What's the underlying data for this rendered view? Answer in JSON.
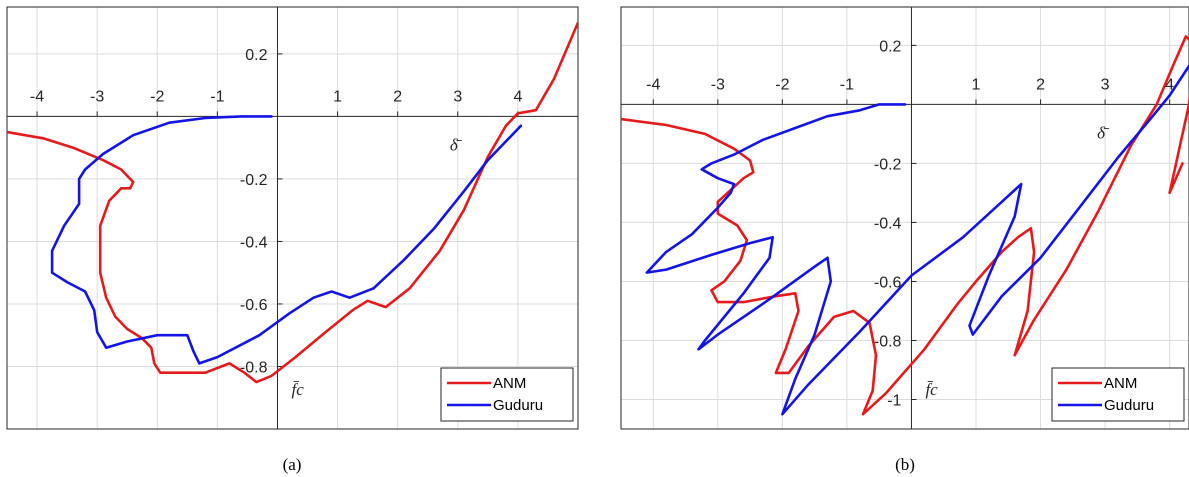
{
  "chart_data": [
    {
      "type": "line",
      "caption": "(a)",
      "xlabel": "δ̄",
      "ylabel": "f̄c",
      "xlim": [
        -4.5,
        5.0
      ],
      "ylim": [
        -1.0,
        0.35
      ],
      "xticks": [
        -4,
        -3,
        -2,
        -1,
        1,
        2,
        3,
        4
      ],
      "yticks": [
        0.2,
        -0.2,
        -0.4,
        -0.6,
        -0.8
      ],
      "grid": true,
      "legend_position": "bottom-right",
      "colors": {
        "ANM": "#e41a1c",
        "Guduru": "#1414e6"
      },
      "series": [
        {
          "name": "ANM",
          "points": [
            [
              -4.5,
              -0.05
            ],
            [
              -3.9,
              -0.07
            ],
            [
              -3.4,
              -0.1
            ],
            [
              -2.9,
              -0.14
            ],
            [
              -2.6,
              -0.17
            ],
            [
              -2.45,
              -0.2
            ],
            [
              -2.4,
              -0.21
            ],
            [
              -2.45,
              -0.23
            ],
            [
              -2.6,
              -0.23
            ],
            [
              -2.8,
              -0.27
            ],
            [
              -2.95,
              -0.35
            ],
            [
              -2.95,
              -0.5
            ],
            [
              -2.85,
              -0.58
            ],
            [
              -2.7,
              -0.64
            ],
            [
              -2.5,
              -0.68
            ],
            [
              -2.25,
              -0.71
            ],
            [
              -2.1,
              -0.74
            ],
            [
              -2.05,
              -0.79
            ],
            [
              -1.95,
              -0.82
            ],
            [
              -1.6,
              -0.82
            ],
            [
              -1.2,
              -0.82
            ],
            [
              -0.8,
              -0.79
            ],
            [
              -0.55,
              -0.82
            ],
            [
              -0.35,
              -0.85
            ],
            [
              -0.1,
              -0.83
            ],
            [
              0.3,
              -0.77
            ],
            [
              0.8,
              -0.69
            ],
            [
              1.25,
              -0.62
            ],
            [
              1.5,
              -0.59
            ],
            [
              1.8,
              -0.61
            ],
            [
              2.2,
              -0.55
            ],
            [
              2.7,
              -0.43
            ],
            [
              3.1,
              -0.3
            ],
            [
              3.5,
              -0.13
            ],
            [
              3.8,
              -0.03
            ],
            [
              4.0,
              0.01
            ],
            [
              4.3,
              0.02
            ],
            [
              4.6,
              0.12
            ],
            [
              5.0,
              0.3
            ]
          ]
        },
        {
          "name": "Guduru",
          "points": [
            [
              -0.1,
              0.0
            ],
            [
              -0.6,
              0.0
            ],
            [
              -1.2,
              -0.005
            ],
            [
              -1.8,
              -0.02
            ],
            [
              -2.4,
              -0.06
            ],
            [
              -2.9,
              -0.12
            ],
            [
              -3.2,
              -0.17
            ],
            [
              -3.3,
              -0.2
            ],
            [
              -3.3,
              -0.28
            ],
            [
              -3.55,
              -0.35
            ],
            [
              -3.75,
              -0.43
            ],
            [
              -3.75,
              -0.5
            ],
            [
              -3.5,
              -0.53
            ],
            [
              -3.2,
              -0.56
            ],
            [
              -3.05,
              -0.62
            ],
            [
              -3.0,
              -0.69
            ],
            [
              -2.85,
              -0.74
            ],
            [
              -2.5,
              -0.72
            ],
            [
              -2.0,
              -0.7
            ],
            [
              -1.5,
              -0.7
            ],
            [
              -1.4,
              -0.75
            ],
            [
              -1.3,
              -0.79
            ],
            [
              -1.0,
              -0.77
            ],
            [
              -0.3,
              -0.7
            ],
            [
              0.2,
              -0.63
            ],
            [
              0.6,
              -0.58
            ],
            [
              0.9,
              -0.56
            ],
            [
              1.2,
              -0.58
            ],
            [
              1.6,
              -0.55
            ],
            [
              2.1,
              -0.46
            ],
            [
              2.6,
              -0.36
            ],
            [
              3.1,
              -0.24
            ],
            [
              3.5,
              -0.14
            ],
            [
              3.8,
              -0.08
            ],
            [
              4.05,
              -0.03
            ]
          ]
        }
      ]
    },
    {
      "type": "line",
      "caption": "(b)",
      "xlabel": "δ̄",
      "ylabel": "f̄c",
      "xlim": [
        -4.5,
        4.3
      ],
      "ylim": [
        -1.1,
        0.33
      ],
      "xticks": [
        -4,
        -3,
        -2,
        -1,
        1,
        2,
        3,
        4
      ],
      "yticks": [
        0.2,
        -0.2,
        -0.4,
        -0.6,
        -0.8,
        -1
      ],
      "grid": true,
      "legend_position": "bottom-right",
      "colors": {
        "ANM": "#e41a1c",
        "Guduru": "#1414e6"
      },
      "series": [
        {
          "name": "ANM",
          "points": [
            [
              -4.5,
              -0.05
            ],
            [
              -3.8,
              -0.07
            ],
            [
              -3.2,
              -0.1
            ],
            [
              -2.75,
              -0.15
            ],
            [
              -2.5,
              -0.19
            ],
            [
              -2.45,
              -0.23
            ],
            [
              -2.6,
              -0.25
            ],
            [
              -2.85,
              -0.3
            ],
            [
              -3.0,
              -0.33
            ],
            [
              -3.0,
              -0.37
            ],
            [
              -2.7,
              -0.41
            ],
            [
              -2.55,
              -0.46
            ],
            [
              -2.65,
              -0.53
            ],
            [
              -2.9,
              -0.6
            ],
            [
              -3.1,
              -0.63
            ],
            [
              -3.0,
              -0.67
            ],
            [
              -2.6,
              -0.67
            ],
            [
              -2.1,
              -0.65
            ],
            [
              -1.8,
              -0.64
            ],
            [
              -1.75,
              -0.7
            ],
            [
              -1.95,
              -0.83
            ],
            [
              -2.1,
              -0.91
            ],
            [
              -1.9,
              -0.91
            ],
            [
              -1.6,
              -0.82
            ],
            [
              -1.2,
              -0.72
            ],
            [
              -0.9,
              -0.7
            ],
            [
              -0.65,
              -0.74
            ],
            [
              -0.55,
              -0.85
            ],
            [
              -0.6,
              -0.97
            ],
            [
              -0.75,
              -1.05
            ],
            [
              -0.4,
              -0.98
            ],
            [
              0.2,
              -0.83
            ],
            [
              0.7,
              -0.68
            ],
            [
              1.0,
              -0.6
            ],
            [
              1.4,
              -0.5
            ],
            [
              1.65,
              -0.45
            ],
            [
              1.85,
              -0.42
            ],
            [
              1.9,
              -0.5
            ],
            [
              1.8,
              -0.7
            ],
            [
              1.6,
              -0.85
            ],
            [
              1.9,
              -0.73
            ],
            [
              2.4,
              -0.56
            ],
            [
              2.9,
              -0.36
            ],
            [
              3.4,
              -0.14
            ],
            [
              3.8,
              0.0
            ],
            [
              4.05,
              0.13
            ],
            [
              4.25,
              0.23
            ],
            [
              4.4,
              0.2
            ],
            [
              4.3,
              0.0
            ],
            [
              4.1,
              -0.2
            ],
            [
              4.0,
              -0.3
            ],
            [
              4.2,
              -0.2
            ]
          ]
        },
        {
          "name": "Guduru",
          "points": [
            [
              -0.1,
              0.0
            ],
            [
              -0.5,
              0.0
            ],
            [
              -0.8,
              -0.02
            ],
            [
              -1.3,
              -0.04
            ],
            [
              -1.8,
              -0.08
            ],
            [
              -2.3,
              -0.12
            ],
            [
              -2.75,
              -0.17
            ],
            [
              -3.1,
              -0.2
            ],
            [
              -3.25,
              -0.22
            ],
            [
              -3.0,
              -0.25
            ],
            [
              -2.75,
              -0.27
            ],
            [
              -2.8,
              -0.3
            ],
            [
              -3.0,
              -0.35
            ],
            [
              -3.4,
              -0.44
            ],
            [
              -3.8,
              -0.5
            ],
            [
              -4.1,
              -0.57
            ],
            [
              -3.8,
              -0.56
            ],
            [
              -3.1,
              -0.51
            ],
            [
              -2.5,
              -0.47
            ],
            [
              -2.15,
              -0.45
            ],
            [
              -2.2,
              -0.52
            ],
            [
              -2.6,
              -0.64
            ],
            [
              -3.2,
              -0.8
            ],
            [
              -3.3,
              -0.83
            ],
            [
              -3.0,
              -0.78
            ],
            [
              -2.2,
              -0.66
            ],
            [
              -1.5,
              -0.55
            ],
            [
              -1.3,
              -0.52
            ],
            [
              -1.25,
              -0.6
            ],
            [
              -1.5,
              -0.78
            ],
            [
              -1.8,
              -0.93
            ],
            [
              -2.0,
              -1.05
            ],
            [
              -1.6,
              -0.95
            ],
            [
              -0.8,
              -0.77
            ],
            [
              0.0,
              -0.58
            ],
            [
              0.8,
              -0.45
            ],
            [
              1.3,
              -0.35
            ],
            [
              1.7,
              -0.27
            ],
            [
              1.6,
              -0.38
            ],
            [
              1.2,
              -0.58
            ],
            [
              0.9,
              -0.75
            ],
            [
              0.95,
              -0.78
            ],
            [
              1.4,
              -0.65
            ],
            [
              2.0,
              -0.52
            ],
            [
              2.6,
              -0.35
            ],
            [
              3.2,
              -0.18
            ],
            [
              3.7,
              -0.05
            ],
            [
              4.0,
              0.03
            ],
            [
              4.3,
              0.13
            ]
          ]
        }
      ]
    }
  ],
  "legend": {
    "anm": "ANM",
    "guduru": "Guduru"
  }
}
